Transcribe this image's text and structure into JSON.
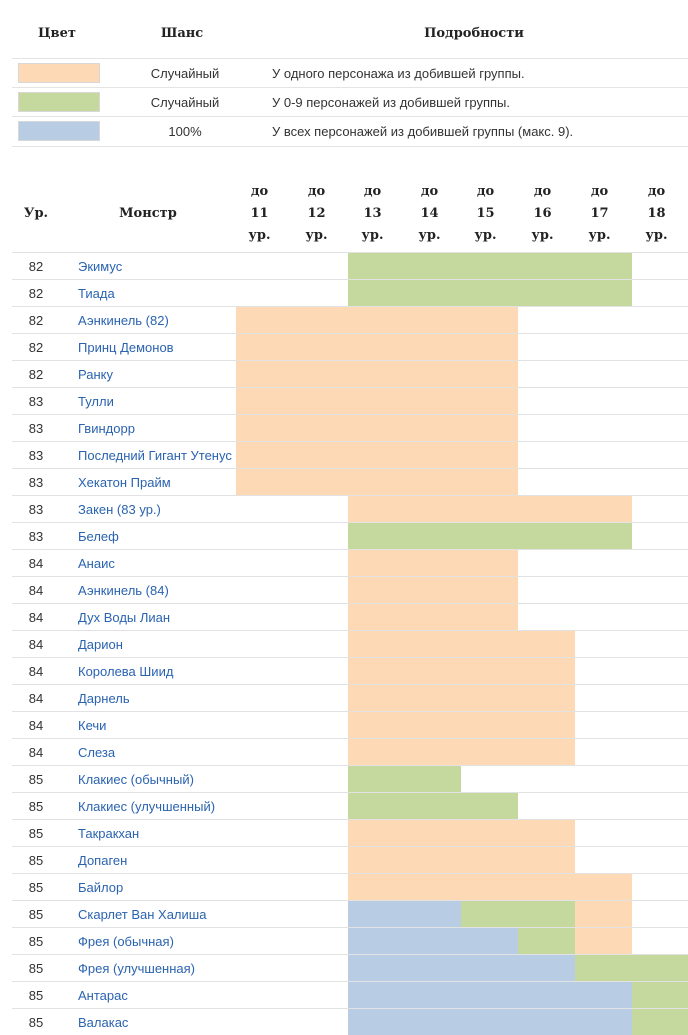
{
  "legend": {
    "headers": {
      "color": "Цвет",
      "chance": "Шанс",
      "details": "Подробности"
    },
    "rows": [
      {
        "color": "#fdd9b5",
        "chance": "Случайный",
        "details": "У одного персонажа из добившей группы."
      },
      {
        "color": "#c5d99e",
        "chance": "Случайный",
        "details": "У 0-9 персонажей из добившей группы."
      },
      {
        "color": "#b8cce4",
        "chance": "100%",
        "details": "У всех персонажей из добившей группы (макс. 9)."
      }
    ]
  },
  "table": {
    "headers": {
      "level": "Ур.",
      "monster": "Монстр",
      "prefix": "до",
      "suffix": "ур.",
      "levels": [
        "11",
        "12",
        "13",
        "14",
        "15",
        "16",
        "17",
        "18"
      ]
    },
    "colors": {
      "orange": "#fdd9b5",
      "green": "#c5d99e",
      "blue": "#b8cce4"
    },
    "rows": [
      {
        "level": "82",
        "name": "Экимус",
        "cells": [
          "",
          "",
          "green",
          "green",
          "green",
          "green",
          "green",
          ""
        ]
      },
      {
        "level": "82",
        "name": "Тиада",
        "cells": [
          "",
          "",
          "green",
          "green",
          "green",
          "green",
          "green",
          ""
        ]
      },
      {
        "level": "82",
        "name": "Аэнкинель (82)",
        "cells": [
          "orange",
          "orange",
          "orange",
          "orange",
          "orange",
          "",
          "",
          ""
        ]
      },
      {
        "level": "82",
        "name": "Принц Демонов",
        "cells": [
          "orange",
          "orange",
          "orange",
          "orange",
          "orange",
          "",
          "",
          ""
        ]
      },
      {
        "level": "82",
        "name": "Ранку",
        "cells": [
          "orange",
          "orange",
          "orange",
          "orange",
          "orange",
          "",
          "",
          ""
        ]
      },
      {
        "level": "83",
        "name": "Тулли",
        "cells": [
          "orange",
          "orange",
          "orange",
          "orange",
          "orange",
          "",
          "",
          ""
        ]
      },
      {
        "level": "83",
        "name": "Гвиндорр",
        "cells": [
          "orange",
          "orange",
          "orange",
          "orange",
          "orange",
          "",
          "",
          ""
        ]
      },
      {
        "level": "83",
        "name": "Последний Гигант Утенус",
        "cells": [
          "orange",
          "orange",
          "orange",
          "orange",
          "orange",
          "",
          "",
          ""
        ]
      },
      {
        "level": "83",
        "name": "Хекатон Прайм",
        "cells": [
          "orange",
          "orange",
          "orange",
          "orange",
          "orange",
          "",
          "",
          ""
        ]
      },
      {
        "level": "83",
        "name": "Закен (83 ур.)",
        "cells": [
          "",
          "",
          "orange",
          "orange",
          "orange",
          "orange",
          "orange",
          ""
        ]
      },
      {
        "level": "83",
        "name": "Белеф",
        "cells": [
          "",
          "",
          "green",
          "green",
          "green",
          "green",
          "green",
          ""
        ]
      },
      {
        "level": "84",
        "name": "Анаис",
        "cells": [
          "",
          "",
          "orange",
          "orange",
          "orange",
          "",
          "",
          ""
        ]
      },
      {
        "level": "84",
        "name": "Аэнкинель (84)",
        "cells": [
          "",
          "",
          "orange",
          "orange",
          "orange",
          "",
          "",
          ""
        ]
      },
      {
        "level": "84",
        "name": "Дух Воды Лиан",
        "cells": [
          "",
          "",
          "orange",
          "orange",
          "orange",
          "",
          "",
          ""
        ]
      },
      {
        "level": "84",
        "name": "Дарион",
        "cells": [
          "",
          "",
          "orange",
          "orange",
          "orange",
          "orange",
          "",
          ""
        ]
      },
      {
        "level": "84",
        "name": "Королева Шиид",
        "cells": [
          "",
          "",
          "orange",
          "orange",
          "orange",
          "orange",
          "",
          ""
        ]
      },
      {
        "level": "84",
        "name": "Дарнель",
        "cells": [
          "",
          "",
          "orange",
          "orange",
          "orange",
          "orange",
          "",
          ""
        ]
      },
      {
        "level": "84",
        "name": "Кечи",
        "cells": [
          "",
          "",
          "orange",
          "orange",
          "orange",
          "orange",
          "",
          ""
        ]
      },
      {
        "level": "84",
        "name": "Слеза",
        "cells": [
          "",
          "",
          "orange",
          "orange",
          "orange",
          "orange",
          "",
          ""
        ]
      },
      {
        "level": "85",
        "name": "Клакиес (обычный)",
        "cells": [
          "",
          "",
          "green",
          "green",
          "",
          "",
          "",
          ""
        ]
      },
      {
        "level": "85",
        "name": "Клакиес (улучшенный)",
        "cells": [
          "",
          "",
          "green",
          "green",
          "green",
          "",
          "",
          ""
        ]
      },
      {
        "level": "85",
        "name": "Такракхан",
        "cells": [
          "",
          "",
          "orange",
          "orange",
          "orange",
          "orange",
          "",
          ""
        ]
      },
      {
        "level": "85",
        "name": "Допаген",
        "cells": [
          "",
          "",
          "orange",
          "orange",
          "orange",
          "orange",
          "",
          ""
        ]
      },
      {
        "level": "85",
        "name": "Байлор",
        "cells": [
          "",
          "",
          "orange",
          "orange",
          "orange",
          "orange",
          "orange",
          ""
        ]
      },
      {
        "level": "85",
        "name": "Скарлет Ван Халиша",
        "cells": [
          "",
          "",
          "blue",
          "blue",
          "green",
          "green",
          "orange",
          ""
        ]
      },
      {
        "level": "85",
        "name": "Фрея (обычная)",
        "cells": [
          "",
          "",
          "blue",
          "blue",
          "blue",
          "green",
          "orange",
          ""
        ]
      },
      {
        "level": "85",
        "name": "Фрея (улучшенная)",
        "cells": [
          "",
          "",
          "blue",
          "blue",
          "blue",
          "blue",
          "green",
          "green"
        ]
      },
      {
        "level": "85",
        "name": "Антарас",
        "cells": [
          "",
          "",
          "blue",
          "blue",
          "blue",
          "blue",
          "blue",
          "green"
        ]
      },
      {
        "level": "85",
        "name": "Валакас",
        "cells": [
          "",
          "",
          "blue",
          "blue",
          "blue",
          "blue",
          "blue",
          "green"
        ]
      }
    ]
  }
}
